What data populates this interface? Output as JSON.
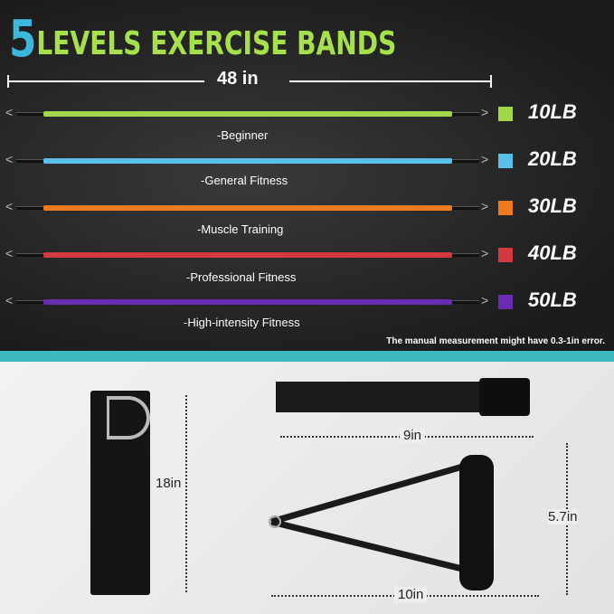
{
  "title": {
    "number": "5",
    "text": "LEVELS EXERCISE BANDS"
  },
  "length_label": "48 in",
  "bands": [
    {
      "weight": "10LB",
      "level": "-Beginner",
      "color": "#a4d64a"
    },
    {
      "weight": "20LB",
      "level": "-General Fitness",
      "color": "#5bc0e8"
    },
    {
      "weight": "30LB",
      "level": "-Muscle Training",
      "color": "#f07a1e"
    },
    {
      "weight": "40LB",
      "level": "-Professional  Fitness",
      "color": "#d13a3e"
    },
    {
      "weight": "50LB",
      "level": "-High-intensity Fitness",
      "color": "#6a2db0"
    }
  ],
  "note": "The manual measurement might have 0.3-1in error.",
  "accessories": {
    "ankle_strap": "18in",
    "door_anchor": "9in",
    "handle_width": "10in",
    "handle_height": "5.7in"
  }
}
